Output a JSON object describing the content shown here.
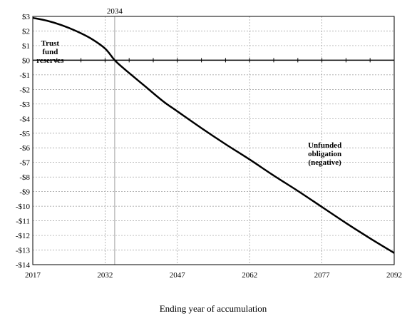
{
  "chart_data": {
    "type": "line",
    "xlabel": "Ending year of accumulation",
    "ylabel": "",
    "xlim": [
      2017,
      2092
    ],
    "ylim": [
      -14,
      3
    ],
    "x_ticks": [
      2017,
      2032,
      2047,
      2062,
      2077,
      2092
    ],
    "x_tick_labels": [
      "2017",
      "2032",
      "2047",
      "2062",
      "2077",
      "2092"
    ],
    "y_ticks": [
      3,
      2,
      1,
      0,
      -1,
      -2,
      -3,
      -4,
      -5,
      -6,
      -7,
      -8,
      -9,
      -10,
      -11,
      -12,
      -13,
      -14
    ],
    "y_tick_labels": [
      "$3",
      "$2",
      "$1",
      "$0",
      "-$1",
      "-$2",
      "-$3",
      "-$4",
      "-$5",
      "-$6",
      "-$7",
      "-$8",
      "-$9",
      "-$10",
      "-$11",
      "-$12",
      "-$13",
      "-$14"
    ],
    "grid": true,
    "reference_line": {
      "x": 2034,
      "label": "2034"
    },
    "series": [
      {
        "x": [
          2017,
          2020,
          2023,
          2026,
          2029,
          2032,
          2034,
          2036,
          2040,
          2044,
          2047,
          2052,
          2057,
          2062,
          2067,
          2072,
          2077,
          2082,
          2087,
          2092
        ],
        "values": [
          2.9,
          2.7,
          2.4,
          2.0,
          1.5,
          0.8,
          0.0,
          -0.6,
          -1.7,
          -2.8,
          -3.5,
          -4.65,
          -5.75,
          -6.8,
          -7.9,
          -8.95,
          -10.05,
          -11.15,
          -12.2,
          -13.2
        ]
      }
    ],
    "annotations": [
      {
        "lines": [
          "Trust",
          "fund",
          "reserves"
        ]
      },
      {
        "lines": [
          "Unfunded",
          "obligation",
          "(negative)"
        ]
      }
    ]
  }
}
